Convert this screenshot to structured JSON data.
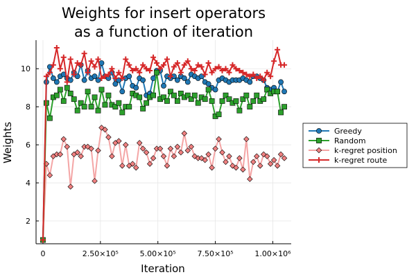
{
  "chart_data": {
    "type": "line",
    "title_line1": "Weights for insert operators",
    "title_line2": "as a function of iteration",
    "xlabel": "Iteration",
    "ylabel": "Weights",
    "xlim": [
      -30000,
      1080000
    ],
    "ylim": [
      0.8,
      11.5
    ],
    "xticks": [
      0,
      250000,
      500000,
      750000,
      1000000
    ],
    "xtick_labels": [
      "0",
      "2.50×10⁵",
      "5.00×10⁵",
      "7.50×10⁵",
      "1.00×10⁶"
    ],
    "yticks": [
      2,
      4,
      6,
      8,
      10
    ],
    "ytick_labels": [
      "2",
      "4",
      "6",
      "8",
      "10"
    ],
    "grid": true,
    "legend_position": "right",
    "x": [
      0,
      15000,
      30000,
      45000,
      60000,
      75000,
      90000,
      105000,
      120000,
      135000,
      150000,
      165000,
      180000,
      195000,
      210000,
      225000,
      240000,
      255000,
      270000,
      285000,
      300000,
      315000,
      330000,
      345000,
      360000,
      375000,
      390000,
      405000,
      420000,
      435000,
      450000,
      465000,
      480000,
      495000,
      510000,
      525000,
      540000,
      555000,
      570000,
      585000,
      600000,
      615000,
      630000,
      645000,
      660000,
      675000,
      690000,
      705000,
      720000,
      735000,
      750000,
      765000,
      780000,
      795000,
      810000,
      825000,
      840000,
      855000,
      870000,
      885000,
      900000,
      915000,
      930000,
      945000,
      960000,
      975000,
      990000,
      1005000,
      1020000,
      1035000,
      1050000
    ],
    "series": [
      {
        "name": "Greedy",
        "color": "#1f77b4",
        "marker": "circle",
        "values": [
          1.0,
          9.3,
          10.1,
          9.5,
          9.3,
          9.6,
          9.7,
          9.5,
          9.4,
          9.8,
          9.6,
          10.2,
          9.4,
          9.9,
          9.5,
          9.6,
          9.4,
          10.3,
          9.6,
          9.5,
          9.8,
          9.2,
          9.4,
          8.8,
          9.5,
          9.6,
          9.1,
          9.0,
          9.5,
          9.4,
          8.6,
          8.7,
          9.5,
          9.9,
          9.9,
          9.1,
          9.6,
          9.5,
          9.6,
          9.4,
          9.6,
          9.5,
          9.3,
          9.7,
          9.6,
          9.5,
          9.6,
          9.3,
          9.2,
          9.0,
          8.9,
          9.4,
          9.5,
          9.4,
          9.3,
          9.4,
          9.4,
          9.4,
          9.5,
          9.4,
          9.3,
          9.6,
          9.6,
          9.5,
          9.4,
          9.0,
          8.9,
          9.0,
          8.8,
          9.3,
          8.8
        ]
      },
      {
        "name": "Random",
        "color": "#2ca02c",
        "marker": "square",
        "values": [
          1.0,
          8.2,
          7.4,
          8.5,
          8.6,
          8.9,
          8.3,
          9.0,
          8.7,
          8.4,
          7.8,
          8.2,
          8.0,
          8.8,
          8.0,
          8.5,
          7.8,
          8.9,
          8.1,
          8.6,
          8.1,
          8.0,
          8.2,
          7.7,
          8.0,
          8.0,
          8.7,
          8.6,
          8.5,
          7.9,
          8.2,
          8.5,
          8.6,
          9.8,
          8.4,
          8.5,
          8.3,
          8.8,
          8.6,
          8.3,
          8.7,
          8.5,
          8.6,
          8.4,
          8.6,
          8.2,
          8.5,
          8.4,
          8.9,
          8.3,
          7.5,
          7.6,
          8.3,
          8.6,
          8.4,
          8.2,
          8.3,
          7.8,
          8.4,
          8.6,
          8.0,
          8.3,
          8.6,
          8.3,
          8.4,
          8.9,
          8.7,
          8.8,
          8.8,
          7.7,
          8.0
        ]
      },
      {
        "name": "k-regret position",
        "color": "#f4a5a5",
        "marker_color": "#f08080",
        "marker": "diamond",
        "values": [
          1.0,
          5.0,
          4.4,
          5.4,
          5.5,
          5.5,
          6.3,
          5.9,
          3.8,
          5.5,
          5.6,
          5.4,
          5.9,
          5.9,
          5.8,
          4.1,
          5.7,
          6.9,
          6.8,
          6.4,
          5.4,
          6.1,
          6.2,
          4.9,
          6.0,
          4.9,
          5.0,
          4.8,
          6.1,
          5.8,
          5.6,
          5.0,
          5.3,
          5.8,
          5.8,
          5.4,
          4.9,
          5.8,
          5.4,
          5.9,
          5.6,
          6.6,
          5.7,
          5.9,
          5.4,
          5.3,
          5.3,
          5.2,
          5.5,
          4.8,
          5.8,
          6.3,
          5.6,
          5.1,
          5.4,
          4.9,
          4.8,
          5.3,
          4.7,
          6.3,
          4.2,
          5.1,
          5.4,
          4.9,
          5.5,
          5.4,
          5.0,
          5.2,
          4.9,
          5.5,
          5.3
        ]
      },
      {
        "name": "k-regret route",
        "color": "#d62728",
        "marker": "cross",
        "values": [
          1.0,
          9.6,
          9.8,
          10.2,
          11.1,
          10.0,
          10.6,
          9.3,
          10.5,
          9.7,
          10.3,
          10.2,
          10.8,
          9.8,
          10.4,
          10.1,
          10.5,
          9.5,
          9.6,
          9.7,
          10.0,
          9.5,
          9.8,
          9.5,
          10.5,
          10.2,
          9.9,
          10.0,
          9.8,
          10.2,
          10.0,
          9.9,
          10.6,
          10.3,
          10.0,
          10.2,
          10.5,
          9.6,
          10.1,
          10.3,
          9.8,
          10.2,
          10.4,
          10.0,
          9.9,
          10.2,
          10.1,
          9.7,
          10.3,
          9.8,
          10.0,
          10.1,
          9.9,
          10.0,
          9.8,
          10.2,
          10.0,
          9.9,
          9.8,
          9.7,
          9.6,
          9.7,
          9.5,
          9.6,
          9.4,
          9.8,
          9.6,
          10.4,
          11.0,
          10.2,
          10.2
        ]
      }
    ]
  }
}
